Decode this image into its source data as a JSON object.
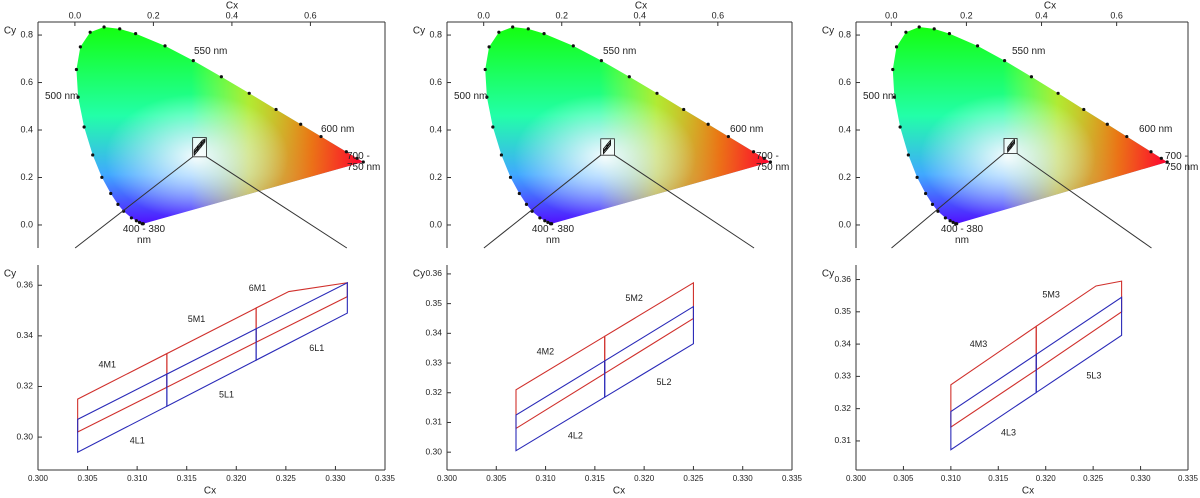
{
  "chart_data": [
    {
      "type": "cie",
      "xlabel": "Cx",
      "ylabel": "Cy",
      "xlim": [
        -0.094,
        0.79
      ],
      "ylim": [
        -0.097,
        0.855
      ],
      "xticks": [
        {
          "value": 0,
          "label": "0.0"
        },
        0.2,
        0.4,
        0.6
      ],
      "yticks": [
        {
          "value": 0,
          "label": "0.0"
        },
        0.2,
        0.4,
        0.6,
        0.8
      ],
      "locus": {
        "x": [
          0.1741,
          0.1714,
          0.1644,
          0.1566,
          0.144,
          0.1241,
          0.1096,
          0.0913,
          0.0687,
          0.0454,
          0.0235,
          0.0082,
          0.0039,
          0.0139,
          0.0389,
          0.0743,
          0.1142,
          0.1547,
          0.2296,
          0.3016,
          0.3731,
          0.4441,
          0.5125,
          0.5752,
          0.627,
          0.6915,
          0.719,
          0.7347
        ],
        "y": [
          0.005,
          0.0051,
          0.0109,
          0.0177,
          0.0297,
          0.0578,
          0.0868,
          0.1327,
          0.2007,
          0.295,
          0.4127,
          0.5384,
          0.6548,
          0.7502,
          0.812,
          0.8338,
          0.8262,
          0.8059,
          0.7543,
          0.6923,
          0.6245,
          0.5547,
          0.4866,
          0.4242,
          0.3725,
          0.3083,
          0.2809,
          0.2653
        ]
      },
      "annotations": [
        "550 nm",
        "500 nm",
        "600 nm",
        "700 - 750 nm",
        "400 - 380 nm"
      ]
    },
    {
      "type": "bins",
      "xlabel": "Cx",
      "ylabel": "Cy",
      "xlim": [
        0.3,
        0.335
      ],
      "ylim": [
        0.287,
        0.368
      ],
      "xticks": [
        {
          "value": 0.3,
          "label": "0.300"
        },
        0.305,
        {
          "value": 0.31,
          "label": "0.310"
        },
        0.315,
        {
          "value": 0.32,
          "label": "0.320"
        },
        0.325,
        {
          "value": 0.33,
          "label": "0.330"
        },
        0.335
      ],
      "yticks": [
        {
          "value": 0.3,
          "label": "0.30"
        },
        0.32,
        0.34,
        0.36
      ],
      "series": [
        {
          "name": "4M1",
          "color": "#d0302c",
          "x": [
            0.304,
            0.304,
            0.313,
            0.313
          ],
          "y": [
            0.302,
            0.315,
            0.333,
            0.3197
          ]
        },
        {
          "name": "5M1",
          "color": "#d0302c",
          "x": [
            0.313,
            0.313,
            0.322,
            0.322
          ],
          "y": [
            0.3197,
            0.333,
            0.351,
            0.3375
          ]
        },
        {
          "name": "6M1",
          "color": "#d0302c",
          "x": [
            0.322,
            0.322,
            0.3253,
            0.3312,
            0.3312
          ],
          "y": [
            0.3375,
            0.351,
            0.3575,
            0.361,
            0.3555
          ]
        },
        {
          "name": "4L1",
          "color": "#2a2ab8",
          "x": [
            0.304,
            0.304,
            0.313,
            0.313
          ],
          "y": [
            0.294,
            0.307,
            0.3249,
            0.3122
          ]
        },
        {
          "name": "5L1",
          "color": "#2a2ab8",
          "x": [
            0.313,
            0.313,
            0.322,
            0.322
          ],
          "y": [
            0.3122,
            0.3249,
            0.3428,
            0.3304
          ]
        },
        {
          "name": "6L1",
          "color": "#2a2ab8",
          "x": [
            0.322,
            0.322,
            0.3312,
            0.3312
          ],
          "y": [
            0.3304,
            0.3428,
            0.361,
            0.349
          ]
        }
      ]
    },
    {
      "type": "cie",
      "xlabel": "Cx",
      "ylabel": "Cy",
      "xlim": [
        -0.094,
        0.79
      ],
      "ylim": [
        -0.097,
        0.855
      ],
      "xticks": [
        {
          "value": 0,
          "label": "0.0"
        },
        0.2,
        0.4,
        0.6
      ],
      "yticks": [
        {
          "value": 0,
          "label": "0.0"
        },
        0.2,
        0.4,
        0.6,
        0.8
      ],
      "locus": {
        "x": [
          0.1741,
          0.1714,
          0.1644,
          0.1566,
          0.144,
          0.1241,
          0.1096,
          0.0913,
          0.0687,
          0.0454,
          0.0235,
          0.0082,
          0.0039,
          0.0139,
          0.0389,
          0.0743,
          0.1142,
          0.1547,
          0.2296,
          0.3016,
          0.3731,
          0.4441,
          0.5125,
          0.5752,
          0.627,
          0.6915,
          0.719,
          0.7347
        ],
        "y": [
          0.005,
          0.0051,
          0.0109,
          0.0177,
          0.0297,
          0.0578,
          0.0868,
          0.1327,
          0.2007,
          0.295,
          0.4127,
          0.5384,
          0.6548,
          0.7502,
          0.812,
          0.8338,
          0.8262,
          0.8059,
          0.7543,
          0.6923,
          0.6245,
          0.5547,
          0.4866,
          0.4242,
          0.3725,
          0.3083,
          0.2809,
          0.2653
        ]
      },
      "annotations": [
        "550 nm",
        "500 nm",
        "600 nm",
        "700 - 750 nm",
        "400 - 380 nm"
      ]
    },
    {
      "type": "bins",
      "xlabel": "Cx",
      "ylabel": "Cy",
      "xlim": [
        0.3,
        0.335
      ],
      "ylim": [
        0.294,
        0.363
      ],
      "xticks": [
        {
          "value": 0.3,
          "label": "0.300"
        },
        0.305,
        {
          "value": 0.31,
          "label": "0.310"
        },
        0.315,
        {
          "value": 0.32,
          "label": "0.320"
        },
        0.325,
        {
          "value": 0.33,
          "label": "0.330"
        },
        0.335
      ],
      "yticks": [
        {
          "value": 0.3,
          "label": "0.30"
        },
        0.31,
        0.32,
        0.33,
        0.34,
        0.35,
        0.36
      ],
      "series": [
        {
          "name": "4M2",
          "color": "#d0302c",
          "x": [
            0.307,
            0.307,
            0.316,
            0.316
          ],
          "y": [
            0.308,
            0.321,
            0.339,
            0.3265
          ]
        },
        {
          "name": "5M2",
          "color": "#d0302c",
          "x": [
            0.316,
            0.316,
            0.325,
            0.325
          ],
          "y": [
            0.3265,
            0.339,
            0.357,
            0.345
          ]
        },
        {
          "name": "4L2",
          "color": "#2a2ab8",
          "x": [
            0.307,
            0.307,
            0.316,
            0.316
          ],
          "y": [
            0.3005,
            0.3125,
            0.3307,
            0.3185
          ]
        },
        {
          "name": "5L2",
          "color": "#2a2ab8",
          "x": [
            0.316,
            0.316,
            0.325,
            0.325
          ],
          "y": [
            0.3185,
            0.3307,
            0.349,
            0.3365
          ]
        }
      ]
    },
    {
      "type": "cie",
      "xlabel": "Cx",
      "ylabel": "Cy",
      "xlim": [
        -0.094,
        0.79
      ],
      "ylim": [
        -0.097,
        0.855
      ],
      "xticks": [
        {
          "value": 0,
          "label": "0.0"
        },
        0.2,
        0.4,
        0.6
      ],
      "yticks": [
        {
          "value": 0,
          "label": "0.0"
        },
        0.2,
        0.4,
        0.6,
        0.8
      ],
      "locus": {
        "x": [
          0.1741,
          0.1714,
          0.1644,
          0.1566,
          0.144,
          0.1241,
          0.1096,
          0.0913,
          0.0687,
          0.0454,
          0.0235,
          0.0082,
          0.0039,
          0.0139,
          0.0389,
          0.0743,
          0.1142,
          0.1547,
          0.2296,
          0.3016,
          0.3731,
          0.4441,
          0.5125,
          0.5752,
          0.627,
          0.6915,
          0.719,
          0.7347
        ],
        "y": [
          0.005,
          0.0051,
          0.0109,
          0.0177,
          0.0297,
          0.0578,
          0.0868,
          0.1327,
          0.2007,
          0.295,
          0.4127,
          0.5384,
          0.6548,
          0.7502,
          0.812,
          0.8338,
          0.8262,
          0.8059,
          0.7543,
          0.6923,
          0.6245,
          0.5547,
          0.4866,
          0.4242,
          0.3725,
          0.3083,
          0.2809,
          0.2653
        ]
      },
      "annotations": [
        "550 nm",
        "500 nm",
        "600 nm",
        "700 - 750 nm",
        "400 - 380 nm"
      ]
    },
    {
      "type": "bins",
      "xlabel": "Cx",
      "ylabel": "Cy",
      "xlim": [
        0.3,
        0.335
      ],
      "ylim": [
        0.301,
        0.3645
      ],
      "xticks": [
        {
          "value": 0.3,
          "label": "0.300"
        },
        0.305,
        {
          "value": 0.31,
          "label": "0.310"
        },
        0.315,
        {
          "value": 0.32,
          "label": "0.320"
        },
        0.325,
        {
          "value": 0.33,
          "label": "0.330"
        },
        0.335
      ],
      "yticks": [
        0.31,
        0.32,
        0.33,
        0.34,
        0.35,
        0.36
      ],
      "series": [
        {
          "name": "4M3",
          "color": "#d0302c",
          "x": [
            0.31,
            0.31,
            0.319,
            0.319
          ],
          "y": [
            0.3143,
            0.3274,
            0.3455,
            0.332
          ]
        },
        {
          "name": "5M3",
          "color": "#d0302c",
          "x": [
            0.319,
            0.319,
            0.3253,
            0.328,
            0.328
          ],
          "y": [
            0.332,
            0.3455,
            0.358,
            0.3595,
            0.35
          ]
        },
        {
          "name": "4L3",
          "color": "#2a2ab8",
          "x": [
            0.31,
            0.31,
            0.319,
            0.319
          ],
          "y": [
            0.3073,
            0.3191,
            0.3368,
            0.325
          ]
        },
        {
          "name": "5L3",
          "color": "#2a2ab8",
          "x": [
            0.319,
            0.319,
            0.328,
            0.328
          ],
          "y": [
            0.325,
            0.3368,
            0.3545,
            0.3427
          ]
        }
      ]
    }
  ]
}
